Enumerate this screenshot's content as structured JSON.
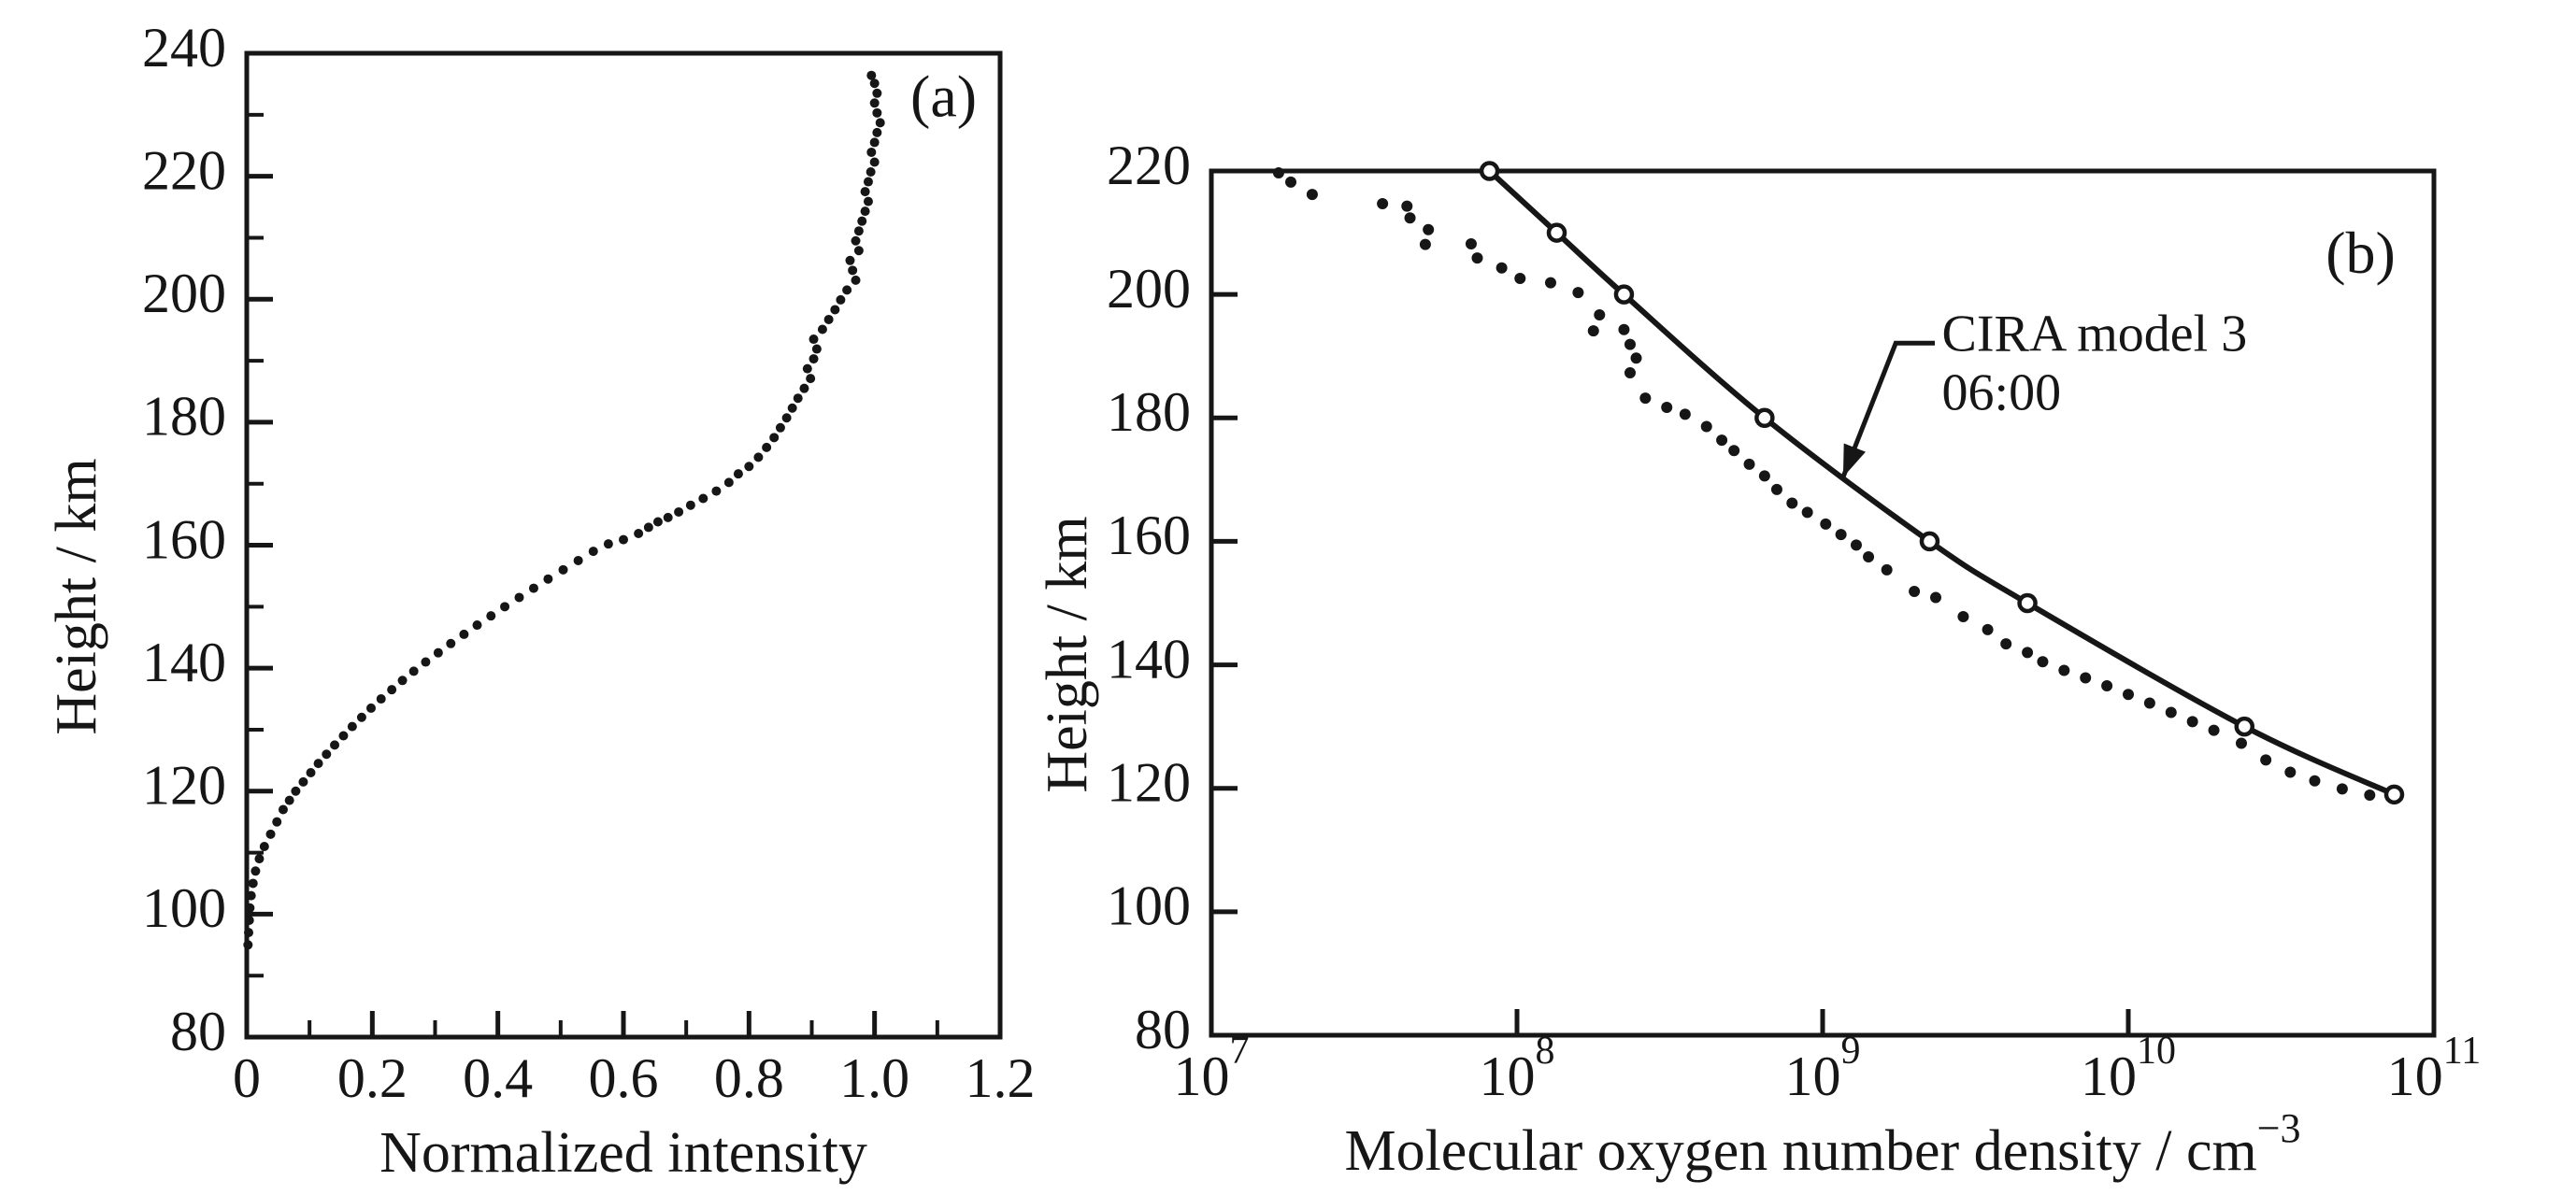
{
  "colors": {
    "ink": "#161616",
    "background": "#ffffff"
  },
  "chart_data": [
    {
      "id": "a",
      "type": "scatter",
      "panel_label": "(a)",
      "panel_label_pos": [
        1.11,
        232
      ],
      "xlabel": "Normalized intensity",
      "xlabel_parts": [
        {
          "t": "Normalized intensity"
        }
      ],
      "ylabel": "Height / km",
      "x_range": [
        0,
        1.2
      ],
      "y_range": [
        80,
        240
      ],
      "grid": false,
      "legend": "none",
      "x_axis": {
        "labels": [
          {
            "v": 0,
            "label": "0"
          },
          {
            "v": 0.2,
            "label": "0.2"
          },
          {
            "v": 0.4,
            "label": "0.4"
          },
          {
            "v": 0.6,
            "label": "0.6"
          },
          {
            "v": 0.8,
            "label": "0.8"
          },
          {
            "v": 1.0,
            "label": "1.0"
          },
          {
            "v": 1.2,
            "label": "1.2"
          }
        ],
        "ticks_major": [
          0.2,
          0.4,
          0.6,
          0.8,
          1.0
        ],
        "ticks_minor": [
          0.1,
          0.3,
          0.5,
          0.7,
          0.9,
          1.1
        ]
      },
      "y_axis": {
        "labels": [
          {
            "v": 80,
            "label": "80"
          },
          {
            "v": 100,
            "label": "100"
          },
          {
            "v": 120,
            "label": "120"
          },
          {
            "v": 140,
            "label": "140"
          },
          {
            "v": 160,
            "label": "160"
          },
          {
            "v": 180,
            "label": "180"
          },
          {
            "v": 200,
            "label": "200"
          },
          {
            "v": 220,
            "label": "220"
          },
          {
            "v": 240,
            "label": "240"
          }
        ],
        "ticks_major": [
          100,
          120,
          140,
          160,
          180,
          200,
          220
        ],
        "ticks_minor": [
          90,
          110,
          130,
          150,
          170,
          190,
          210,
          230
        ]
      },
      "series": [
        {
          "name": "normalized-intensity-profile",
          "kind": "scatter",
          "marker": "dot",
          "marker_radius": 5,
          "points": [
            [
              0.002,
              95
            ],
            [
              0.003,
              97
            ],
            [
              0.004,
              99
            ],
            [
              0.005,
              101
            ],
            [
              0.007,
              103
            ],
            [
              0.01,
              105
            ],
            [
              0.014,
              107
            ],
            [
              0.02,
              109
            ],
            [
              0.028,
              111
            ],
            [
              0.038,
              113
            ],
            [
              0.048,
              115
            ],
            [
              0.058,
              117
            ],
            [
              0.068,
              118.5
            ],
            [
              0.078,
              120
            ],
            [
              0.09,
              121.5
            ],
            [
              0.102,
              123
            ],
            [
              0.114,
              124.5
            ],
            [
              0.127,
              126
            ],
            [
              0.14,
              127.5
            ],
            [
              0.154,
              129
            ],
            [
              0.168,
              130.5
            ],
            [
              0.183,
              132
            ],
            [
              0.198,
              133.5
            ],
            [
              0.214,
              135
            ],
            [
              0.231,
              136.5
            ],
            [
              0.248,
              138
            ],
            [
              0.266,
              139.5
            ],
            [
              0.285,
              141
            ],
            [
              0.305,
              142.5
            ],
            [
              0.325,
              144
            ],
            [
              0.346,
              145.5
            ],
            [
              0.367,
              147
            ],
            [
              0.389,
              148.5
            ],
            [
              0.411,
              150
            ],
            [
              0.434,
              151.5
            ],
            [
              0.457,
              153
            ],
            [
              0.48,
              154.5
            ],
            [
              0.504,
              156
            ],
            [
              0.528,
              157.5
            ],
            [
              0.552,
              159
            ],
            [
              0.576,
              160.2
            ],
            [
              0.6,
              160.9
            ],
            [
              0.624,
              161.9
            ],
            [
              0.64,
              162.9
            ],
            [
              0.655,
              163.8
            ],
            [
              0.671,
              164.5
            ],
            [
              0.688,
              165.4
            ],
            [
              0.707,
              166.5
            ],
            [
              0.727,
              167.6
            ],
            [
              0.748,
              168.8
            ],
            [
              0.768,
              170.2
            ],
            [
              0.783,
              171.6
            ],
            [
              0.8,
              172.8
            ],
            [
              0.815,
              174.3
            ],
            [
              0.828,
              175.9
            ],
            [
              0.84,
              177.5
            ],
            [
              0.85,
              179.1
            ],
            [
              0.86,
              180.7
            ],
            [
              0.869,
              182.3
            ],
            [
              0.878,
              183.9
            ],
            [
              0.888,
              185.5
            ],
            [
              0.898,
              187.1
            ],
            [
              0.893,
              188.7
            ],
            [
              0.903,
              190.3
            ],
            [
              0.908,
              191.9
            ],
            [
              0.903,
              193.5
            ],
            [
              0.917,
              195.1
            ],
            [
              0.927,
              196.7
            ],
            [
              0.937,
              198.3
            ],
            [
              0.946,
              199.9
            ],
            [
              0.956,
              201.5
            ],
            [
              0.97,
              203.1
            ],
            [
              0.965,
              204.7
            ],
            [
              0.961,
              206.3
            ],
            [
              0.975,
              207.9
            ],
            [
              0.97,
              209.5
            ],
            [
              0.975,
              211.1
            ],
            [
              0.98,
              212.7
            ],
            [
              0.985,
              214.3
            ],
            [
              0.99,
              215.9
            ],
            [
              0.985,
              217.5
            ],
            [
              0.99,
              219.1
            ],
            [
              0.994,
              220.7
            ],
            [
              1.0,
              222.3
            ],
            [
              0.995,
              223.9
            ],
            [
              1.0,
              225.5
            ],
            [
              1.004,
              227.1
            ],
            [
              1.009,
              228.7
            ],
            [
              1.004,
              230.3
            ],
            [
              1.0,
              231.9
            ],
            [
              1.004,
              233.5
            ],
            [
              1.0,
              235.1
            ],
            [
              0.995,
              236.4
            ]
          ]
        }
      ]
    },
    {
      "id": "b",
      "type": "scatter",
      "panel_label": "(b)",
      "panel_label_pos": [
        10.76,
        205.7
      ],
      "xlabel": "Molecular oxygen number density / cm⁻³",
      "xlabel_parts": [
        {
          "t": "Molecular oxygen number density / cm"
        },
        {
          "t": "−3",
          "sup": true
        }
      ],
      "ylabel": "Height / km",
      "x_scale": "log10",
      "x_range": [
        7,
        11
      ],
      "y_range": [
        80,
        220
      ],
      "grid": false,
      "legend": "none",
      "x_axis": {
        "labels": [
          {
            "v": 7,
            "label": "10",
            "sup": "7"
          },
          {
            "v": 8,
            "label": "10",
            "sup": "8"
          },
          {
            "v": 9,
            "label": "10",
            "sup": "9"
          },
          {
            "v": 10,
            "label": "10",
            "sup": "10"
          },
          {
            "v": 11,
            "label": "10",
            "sup": "11"
          }
        ],
        "ticks_major": [
          8,
          9,
          10
        ],
        "ticks_minor": []
      },
      "y_axis": {
        "labels": [
          {
            "v": 80,
            "label": "80"
          },
          {
            "v": 100,
            "label": "100"
          },
          {
            "v": 120,
            "label": "120"
          },
          {
            "v": 140,
            "label": "140"
          },
          {
            "v": 160,
            "label": "160"
          },
          {
            "v": 180,
            "label": "180"
          },
          {
            "v": 200,
            "label": "200"
          },
          {
            "v": 220,
            "label": "220"
          }
        ],
        "ticks_major": [
          100,
          120,
          140,
          160,
          180,
          200
        ],
        "ticks_minor": []
      },
      "series": [
        {
          "name": "measured-o2-density",
          "kind": "scatter",
          "marker": "dot",
          "marker_radius": 6,
          "points": [
            [
              7.22,
              219.7
            ],
            [
              7.26,
              218.2
            ],
            [
              7.33,
              216.2
            ],
            [
              7.56,
              214.7
            ],
            [
              7.64,
              214.3
            ],
            [
              7.65,
              212.4
            ],
            [
              7.71,
              210.5
            ],
            [
              7.7,
              208.1
            ],
            [
              7.85,
              208.2
            ],
            [
              7.87,
              205.9
            ],
            [
              7.95,
              204.3
            ],
            [
              8.01,
              202.6
            ],
            [
              8.11,
              201.9
            ],
            [
              8.2,
              200.3
            ],
            [
              8.27,
              196.7
            ],
            [
              8.25,
              194.1
            ],
            [
              8.35,
              194.3
            ],
            [
              8.37,
              191.9
            ],
            [
              8.39,
              189.7
            ],
            [
              8.37,
              187.3
            ],
            [
              8.42,
              183.2
            ],
            [
              8.49,
              181.7
            ],
            [
              8.55,
              180.6
            ],
            [
              8.62,
              178.6
            ],
            [
              8.67,
              176.4
            ],
            [
              8.71,
              174.7
            ],
            [
              8.76,
              172.5
            ],
            [
              8.81,
              170.6
            ],
            [
              8.85,
              168.4
            ],
            [
              8.9,
              166.2
            ],
            [
              8.95,
              164.7
            ],
            [
              9.01,
              162.8
            ],
            [
              9.06,
              161.1
            ],
            [
              9.11,
              159.4
            ],
            [
              9.15,
              157.5
            ],
            [
              9.21,
              155.4
            ],
            [
              9.3,
              151.9
            ],
            [
              9.37,
              150.9
            ],
            [
              9.46,
              147.8
            ],
            [
              9.54,
              145.7
            ],
            [
              9.6,
              143.4
            ],
            [
              9.67,
              142.0
            ],
            [
              9.72,
              140.5
            ],
            [
              9.79,
              139.1
            ],
            [
              9.86,
              137.9
            ],
            [
              9.93,
              136.6
            ],
            [
              10.0,
              135.2
            ],
            [
              10.07,
              133.8
            ],
            [
              10.14,
              132.3
            ],
            [
              10.21,
              130.8
            ],
            [
              10.28,
              129.4
            ],
            [
              10.37,
              127.3
            ],
            [
              10.45,
              124.6
            ],
            [
              10.53,
              122.6
            ],
            [
              10.61,
              121.2
            ],
            [
              10.7,
              119.9
            ],
            [
              10.79,
              118.9
            ]
          ]
        },
        {
          "name": "cira-model-3-0600",
          "kind": "line",
          "marker": "open-circle",
          "marker_radius": 8.5,
          "line_width": 6,
          "points": [
            [
              7.91,
              220
            ],
            [
              8.13,
              210
            ],
            [
              8.35,
              200
            ],
            [
              8.81,
              180
            ],
            [
              9.35,
              160
            ],
            [
              9.67,
              150
            ],
            [
              10.38,
              130
            ],
            [
              10.87,
              119
            ]
          ]
        }
      ],
      "annotation": {
        "lines": [
          "CIRA model 3",
          "06:00"
        ],
        "font_size": 56,
        "text_pos": [
          9.39,
          192.8
        ],
        "leader": [
          [
            9.367,
            192.1
          ],
          [
            9.239,
            192.1
          ],
          [
            9.067,
            170.4
          ]
        ]
      }
    }
  ]
}
